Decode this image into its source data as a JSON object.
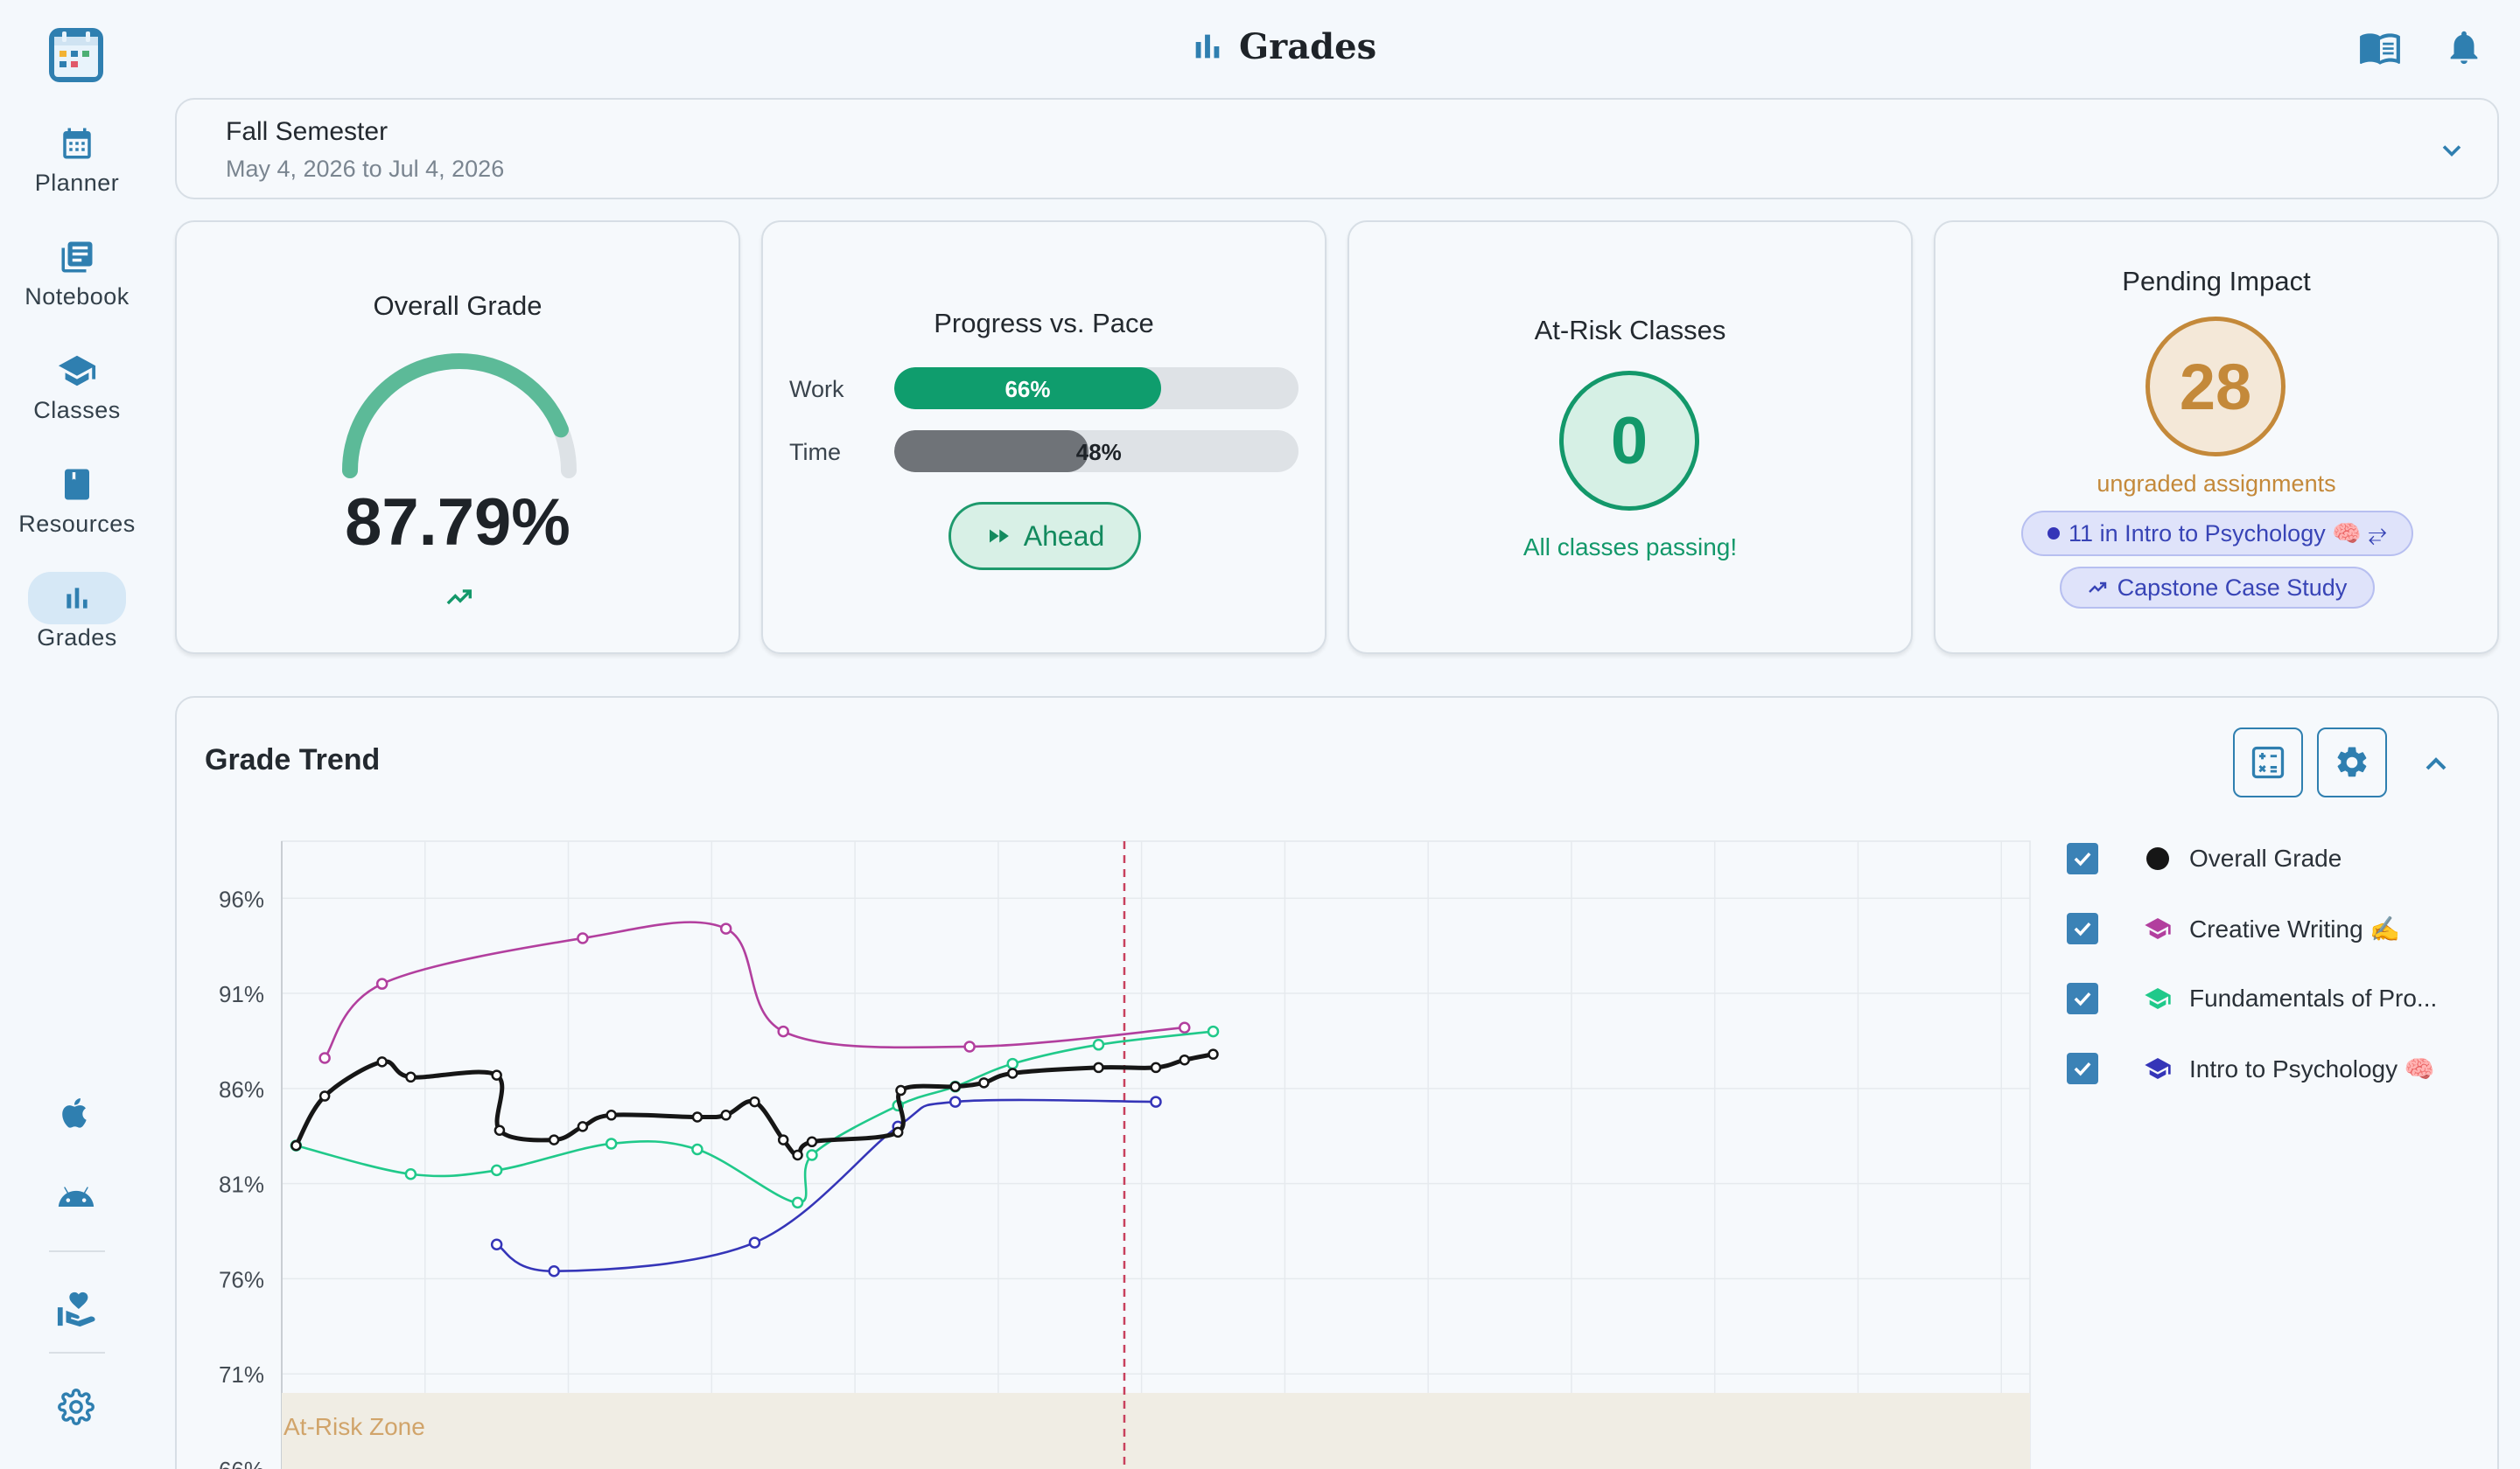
{
  "header": {
    "title": "Grades"
  },
  "sidebar": {
    "items": [
      {
        "label": "Planner"
      },
      {
        "label": "Notebook"
      },
      {
        "label": "Classes"
      },
      {
        "label": "Resources"
      },
      {
        "label": "Grades"
      }
    ]
  },
  "semester": {
    "name": "Fall Semester",
    "range": "May 4, 2026 to Jul 4, 2026"
  },
  "cards": {
    "overall": {
      "title": "Overall Grade",
      "value": "87.79%",
      "gauge_fraction": 0.8779
    },
    "progress": {
      "title": "Progress vs. Pace",
      "work_label": "Work",
      "work_value": "66%",
      "work_fraction": 0.66,
      "time_label": "Time",
      "time_value": "48%",
      "time_fraction": 0.48,
      "status": "Ahead"
    },
    "at_risk": {
      "title": "At-Risk Classes",
      "count": "0",
      "message": "All classes passing!"
    },
    "pending": {
      "title": "Pending Impact",
      "count": "28",
      "caption": "ungraded assignments",
      "chip1": "11 in Intro to Psychology 🧠 ⥂",
      "chip2": "Capstone Case Study"
    }
  },
  "trend": {
    "title": "Grade Trend"
  },
  "colors": {
    "accent": "#2f7fb0",
    "green": "#13986a",
    "amber": "#c4893a",
    "overall": "#161616",
    "creative": "#b23f9e",
    "fundamentals": "#20c98a",
    "psychology": "#3535b8",
    "today_line": "#c8415d"
  },
  "chart_data": {
    "type": "line",
    "y_tick_labels": [
      "96%",
      "91%",
      "86%",
      "81%",
      "76%",
      "71%",
      "66%"
    ],
    "y_ticks": [
      96,
      91,
      86,
      81,
      76,
      71,
      66
    ],
    "ylim": [
      66,
      99
    ],
    "xlim": [
      0,
      61
    ],
    "zone_label": "At-Risk Zone",
    "zone_range": [
      66,
      70
    ],
    "today_x": 29.4,
    "grid": true,
    "legend_position": "right",
    "series": [
      {
        "name": "Overall Grade",
        "color": "#161616",
        "points": [
          [
            0.5,
            83
          ],
          [
            1.5,
            85.6
          ],
          [
            3.5,
            87.4
          ],
          [
            4.5,
            86.6
          ],
          [
            7.5,
            86.7
          ],
          [
            7.6,
            83.8
          ],
          [
            9.5,
            83.3
          ],
          [
            10.5,
            84
          ],
          [
            11.5,
            84.6
          ],
          [
            14.5,
            84.5
          ],
          [
            15.5,
            84.6
          ],
          [
            16.5,
            85.3
          ],
          [
            17.5,
            83.3
          ],
          [
            18,
            82.5
          ],
          [
            18.5,
            83.2
          ],
          [
            21.5,
            83.7
          ],
          [
            21.6,
            85.9
          ],
          [
            23.5,
            86.1
          ],
          [
            24.5,
            86.3
          ],
          [
            25.5,
            86.8
          ],
          [
            28.5,
            87.1
          ],
          [
            30.5,
            87.1
          ],
          [
            31.5,
            87.5
          ],
          [
            32.5,
            87.8
          ]
        ]
      },
      {
        "name": "Creative Writing ✍️",
        "color": "#b23f9e",
        "points": [
          [
            1.5,
            87.6
          ],
          [
            3.5,
            91.5
          ],
          [
            10.5,
            93.9
          ],
          [
            15.5,
            94.4
          ],
          [
            17.5,
            89
          ],
          [
            24,
            88.2
          ],
          [
            31.5,
            89.2
          ]
        ]
      },
      {
        "name": "Fundamentals of Pro...",
        "color": "#20c98a",
        "points": [
          [
            0.5,
            83
          ],
          [
            4.5,
            81.5
          ],
          [
            7.5,
            81.7
          ],
          [
            11.5,
            83.1
          ],
          [
            14.5,
            82.8
          ],
          [
            18,
            80
          ],
          [
            18.5,
            82.5
          ],
          [
            21.5,
            85.1
          ],
          [
            23.5,
            86.1
          ],
          [
            25.5,
            87.3
          ],
          [
            28.5,
            88.3
          ],
          [
            32.5,
            89
          ]
        ]
      },
      {
        "name": "Intro to Psychology 🧠",
        "color": "#3535b8",
        "points": [
          [
            7.5,
            77.8
          ],
          [
            9.5,
            76.4
          ],
          [
            16.5,
            77.9
          ],
          [
            21.5,
            84
          ],
          [
            23.5,
            85.3
          ],
          [
            30.5,
            85.3
          ]
        ]
      }
    ]
  }
}
